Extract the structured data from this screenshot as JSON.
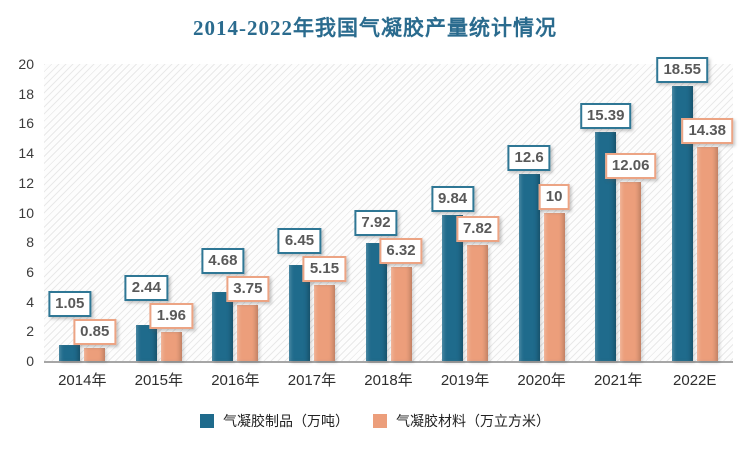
{
  "chart_data": {
    "type": "bar",
    "title": "2014-2022年我国气凝胶产量统计情况",
    "categories": [
      "2014年",
      "2015年",
      "2016年",
      "2017年",
      "2018年",
      "2019年",
      "2020年",
      "2021年",
      "2022E"
    ],
    "series": [
      {
        "name": "气凝胶制品（万吨）",
        "color": "#1f6b8c",
        "label_border": "#2f7795",
        "values": [
          1.05,
          2.44,
          4.68,
          6.45,
          7.92,
          9.84,
          12.6,
          15.39,
          18.55
        ],
        "labels": [
          "1.05",
          "2.44",
          "4.68",
          "6.45",
          "7.92",
          "9.84",
          "12.6",
          "15.39",
          "18.55"
        ]
      },
      {
        "name": "气凝胶材料（万立方米）",
        "color": "#ec9e7b",
        "label_border": "#eca484",
        "values": [
          0.85,
          1.96,
          3.75,
          5.15,
          6.32,
          7.82,
          10,
          12.06,
          14.38
        ],
        "labels": [
          "0.85",
          "1.96",
          "3.75",
          "5.15",
          "6.32",
          "7.82",
          "10",
          "12.06",
          "14.38"
        ]
      }
    ],
    "ylim": [
      0,
      20
    ],
    "ytick_step": 2,
    "yticks": [
      "0",
      "2",
      "4",
      "6",
      "8",
      "10",
      "12",
      "14",
      "16",
      "18",
      "20"
    ],
    "grid": false,
    "plot_background": "light-upward-diagonal-hatch",
    "legend_position": "bottom"
  },
  "colors": {
    "title_text": "#2a6b8e",
    "axis_text": "#3b3b3b",
    "data_label_text": "#595959",
    "axis_line": "#a6a6a6"
  }
}
